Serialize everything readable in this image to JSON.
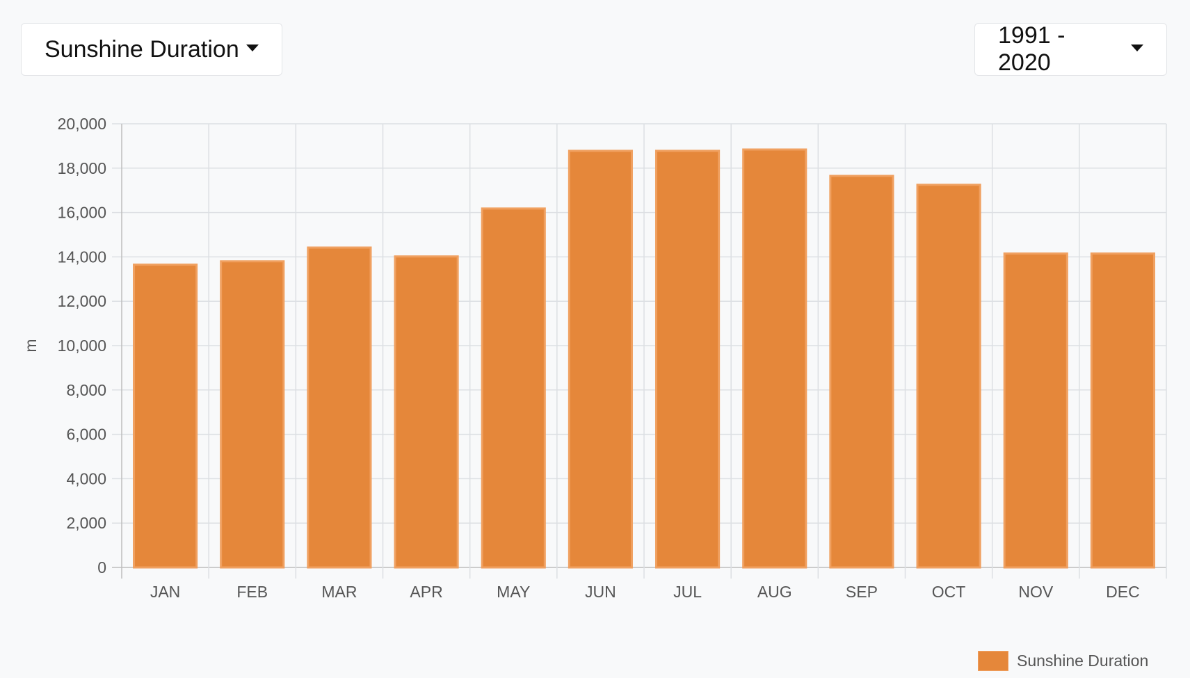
{
  "controls": {
    "metric_label": "Sunshine Duration",
    "period_label": "1991 - 2020"
  },
  "colors": {
    "bar": "#e5873a",
    "bar_border": "#f0a060",
    "grid": "#dcdfe3",
    "axis": "#bdbdbd"
  },
  "legend": {
    "label": "Sunshine Duration",
    "icon": "swatch"
  },
  "chart_data": {
    "type": "bar",
    "categories": [
      "JAN",
      "FEB",
      "MAR",
      "APR",
      "MAY",
      "JUN",
      "JUL",
      "AUG",
      "SEP",
      "OCT",
      "NOV",
      "DEC"
    ],
    "series": [
      {
        "name": "Sunshine Duration",
        "values": [
          13650,
          13800,
          14420,
          14020,
          16180,
          18780,
          18780,
          18840,
          17650,
          17250,
          14150,
          14150
        ]
      }
    ],
    "ylabel": "m",
    "ylim": [
      0,
      20000
    ],
    "yticks": [
      0,
      2000,
      4000,
      6000,
      8000,
      10000,
      12000,
      14000,
      16000,
      18000,
      20000
    ],
    "ytick_labels": [
      "0",
      "2,000",
      "4,000",
      "6,000",
      "8,000",
      "10,000",
      "12,000",
      "14,000",
      "16,000",
      "18,000",
      "20,000"
    ],
    "grid": true,
    "legend_position": "bottom-right"
  }
}
